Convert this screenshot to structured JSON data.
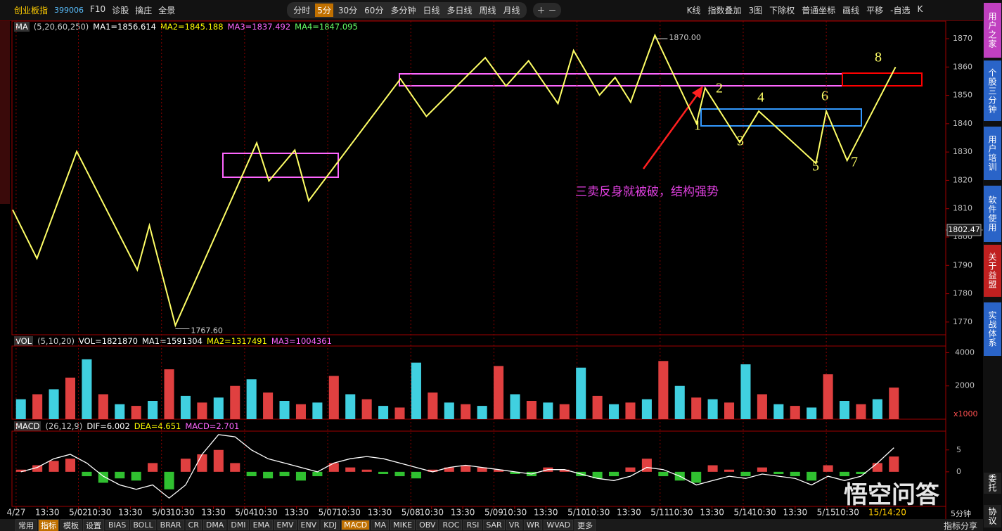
{
  "toolbar": {
    "name": "创业板指",
    "code": "399006",
    "left_buttons": [
      "F10",
      "诊股",
      "擒庄",
      "全景"
    ],
    "periods": [
      "分时",
      "5分",
      "30分",
      "60分",
      "多分钟",
      "日线",
      "多日线",
      "周线",
      "月线"
    ],
    "active_period_index": 1,
    "right_buttons": [
      "K线",
      "指数叠加",
      "3图",
      "下除权",
      "普通坐标",
      "画线",
      "平移",
      "-自选",
      "K"
    ]
  },
  "price_panel": {
    "indicator": "MA",
    "params": "(5,20,60,250)",
    "readouts": [
      "MA1=1856.614",
      "MA2=1845.188",
      "MA3=1837.492",
      "MA4=1847.095"
    ],
    "ylim": [
      1765.5,
      1876.2
    ],
    "yticks": [
      1770,
      1780,
      1790,
      1800,
      1810,
      1820,
      1830,
      1840,
      1850,
      1860,
      1870
    ],
    "xlim": [
      0,
      539
    ],
    "zigzag": {
      "x": [
        0,
        14,
        37,
        72,
        79,
        94,
        141,
        148,
        163,
        171,
        224,
        239,
        273,
        285,
        298,
        315,
        324,
        339,
        348,
        357,
        371,
        395,
        400,
        420,
        431,
        464,
        470,
        482,
        510
      ],
      "y": [
        1809.6,
        1792.4,
        1830.2,
        1788.4,
        1804.1,
        1768.8,
        1833.2,
        1819.8,
        1830.7,
        1812.8,
        1855.8,
        1842.6,
        1863.3,
        1853.3,
        1862.2,
        1847.1,
        1865.8,
        1850.1,
        1856.3,
        1847.6,
        1871.2,
        1840.1,
        1852.6,
        1833.4,
        1844.4,
        1826.0,
        1844.4,
        1827.0,
        1860.0
      ]
    },
    "high": {
      "value": 1870,
      "label": "1870.00",
      "x": 371
    },
    "low": {
      "value": 1767.6,
      "label": "1767.60",
      "x": 94
    },
    "last_price": {
      "value": 1802.47,
      "label": "1802.47"
    },
    "wave_labels": [
      "1",
      "2",
      "3",
      "4",
      "5",
      "6",
      "7",
      "8"
    ],
    "annotation": "三卖反身就被破，结构强势"
  },
  "volume_panel": {
    "indicator": "VOL",
    "params": "(5,10,20)",
    "readouts": [
      "VOL=1821870",
      "MA1=1591304",
      "MA2=1317491",
      "MA3=1004361"
    ],
    "ylim": [
      0,
      4400
    ],
    "yticks": [
      2000,
      4000
    ],
    "unit": "x1000",
    "values": [
      1200,
      1500,
      1800,
      2500,
      3600,
      1500,
      900,
      800,
      1100,
      3000,
      1400,
      1000,
      1300,
      2000,
      2400,
      1600,
      1100,
      900,
      1000,
      2600,
      1500,
      1200,
      800,
      700,
      3400,
      1600,
      1000,
      900,
      800,
      3200,
      1500,
      1100,
      1000,
      900,
      3100,
      1400,
      900,
      1000,
      1200,
      3500,
      2000,
      1300,
      1200,
      1000,
      3300,
      1500,
      900,
      800,
      700,
      2700,
      1100,
      900,
      1200,
      1900
    ]
  },
  "macd_panel": {
    "indicator": "MACD",
    "params": "(26,12,9)",
    "readouts": [
      "DIF=6.002",
      "DEA=4.651",
      "MACD=2.701"
    ],
    "ylim": [
      -7.9,
      9.3
    ],
    "yticks": [
      0,
      5
    ],
    "histogram": [
      0.5,
      1.5,
      2.5,
      3,
      -1,
      -2.5,
      -1.5,
      -2,
      2,
      -4,
      3,
      4,
      5,
      2,
      -1,
      -1.5,
      -1,
      -2,
      -1,
      2,
      1,
      0.5,
      -0.5,
      -1,
      -1.5,
      0.5,
      1,
      1.5,
      1,
      0.5,
      -0.5,
      -1,
      1,
      0.5,
      -1,
      -1.5,
      -1,
      1,
      3,
      -1,
      -2,
      -2.5,
      1.5,
      0.5,
      -1,
      1,
      -0.5,
      -1,
      -2,
      1.5,
      -1,
      -0.5,
      2,
      3.5
    ],
    "dif": [
      0,
      1,
      3,
      4,
      2,
      -1,
      -3,
      -4,
      -3,
      -6,
      -3,
      4,
      8.5,
      8,
      5,
      3,
      2,
      1,
      0,
      2,
      3,
      3.5,
      3,
      2,
      1,
      0,
      1,
      1.5,
      1,
      0.5,
      0,
      -0.5,
      0.5,
      0.5,
      -0.5,
      -1.5,
      -2,
      -1,
      1,
      0.5,
      -1,
      -3,
      -2,
      -1,
      -1.5,
      -0.5,
      -1,
      -1.5,
      -3,
      -1,
      -2,
      -1,
      2,
      5.5
    ]
  },
  "x_axis": {
    "ticks": [
      {
        "value": 2,
        "label": "4/27"
      },
      {
        "value": 20,
        "label": "13:30"
      },
      {
        "value": 38,
        "label": "5/02"
      },
      {
        "value": 50,
        "label": "10:30"
      },
      {
        "value": 68,
        "label": "13:30"
      },
      {
        "value": 86,
        "label": "5/03"
      },
      {
        "value": 98,
        "label": "10:30"
      },
      {
        "value": 116,
        "label": "13:30"
      },
      {
        "value": 134,
        "label": "5/04"
      },
      {
        "value": 146,
        "label": "10:30"
      },
      {
        "value": 164,
        "label": "13:30"
      },
      {
        "value": 182,
        "label": "5/07"
      },
      {
        "value": 194,
        "label": "10:30"
      },
      {
        "value": 212,
        "label": "13:30"
      },
      {
        "value": 230,
        "label": "5/08"
      },
      {
        "value": 242,
        "label": "10:30"
      },
      {
        "value": 260,
        "label": "13:30"
      },
      {
        "value": 278,
        "label": "5/09"
      },
      {
        "value": 290,
        "label": "10:30"
      },
      {
        "value": 308,
        "label": "13:30"
      },
      {
        "value": 326,
        "label": "5/10"
      },
      {
        "value": 338,
        "label": "10:30"
      },
      {
        "value": 356,
        "label": "13:30"
      },
      {
        "value": 374,
        "label": "5/11"
      },
      {
        "value": 386,
        "label": "10:30"
      },
      {
        "value": 404,
        "label": "13:30"
      },
      {
        "value": 422,
        "label": "5/14"
      },
      {
        "value": 434,
        "label": "10:30"
      },
      {
        "value": 452,
        "label": "13:30"
      },
      {
        "value": 470,
        "label": "5/15"
      },
      {
        "value": 482,
        "label": "10:30"
      }
    ],
    "clock": "15/14:20"
  },
  "sidebar": [
    "用户之家",
    "个股三分钟",
    "用户培训",
    "软件使用",
    "关于益盟",
    "实战体系",
    "委托",
    "协议"
  ],
  "bottom_tabs": [
    "常用",
    "指标",
    "模板",
    "设置",
    "BIAS",
    "BOLL",
    "BRAR",
    "CR",
    "DMA",
    "DMI",
    "EMA",
    "EMV",
    "ENV",
    "KDJ",
    "MACD",
    "MA",
    "MIKE",
    "OBV",
    "ROC",
    "RSI",
    "SAR",
    "VR",
    "WR",
    "WVAD",
    "更多"
  ],
  "active_tab_index": 14,
  "bottom_right": [
    "5分钟",
    "指标分享"
  ],
  "watermark": "悟空问答"
}
